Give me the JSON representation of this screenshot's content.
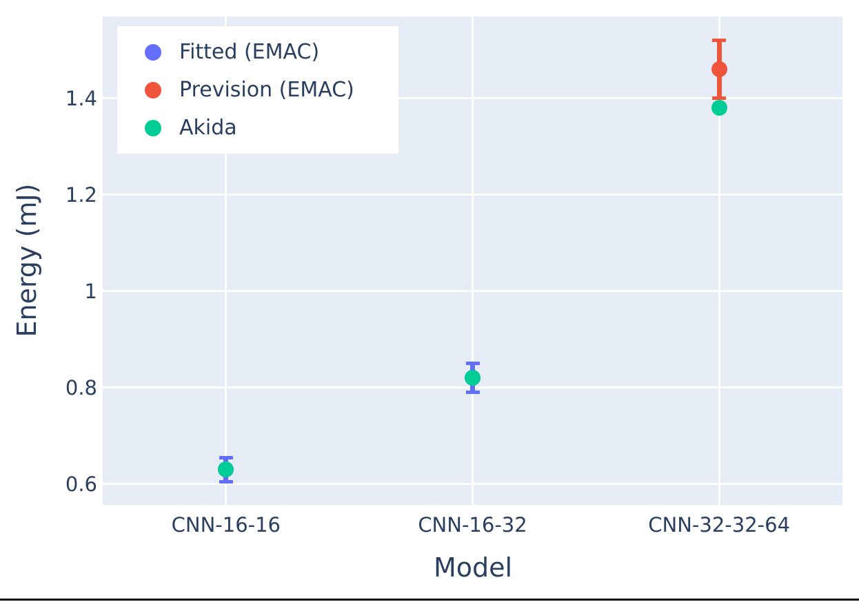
{
  "chart_data": {
    "type": "scatter",
    "title": "",
    "xlabel": "Model",
    "ylabel": "Energy (mJ)",
    "categories": [
      "CNN-16-16",
      "CNN-16-32",
      "CNN-32-32-64"
    ],
    "yticks": [
      0.6,
      0.8,
      1.0,
      1.2,
      1.4
    ],
    "ytick_labels": [
      "0.6",
      "0.8",
      "1",
      "1.2",
      "1.4"
    ],
    "ylim": [
      0.557,
      1.57
    ],
    "grid": true,
    "legend_position": "top-left",
    "plot_bg_color": "#e5ecf6",
    "grid_color": "#ffffff",
    "font_color": "#2a3f5f",
    "series": [
      {
        "name": "Fitted (EMAC)",
        "color": "#636efa",
        "marker": "circle",
        "points": [
          {
            "category": "CNN-16-16",
            "value": 0.63,
            "error": 0.025
          },
          {
            "category": "CNN-16-32",
            "value": 0.82,
            "error": 0.03
          }
        ]
      },
      {
        "name": "Prevision (EMAC)",
        "color": "#ef553b",
        "marker": "circle",
        "points": [
          {
            "category": "CNN-32-32-64",
            "value": 1.46,
            "error": 0.06
          }
        ]
      },
      {
        "name": "Akida",
        "color": "#00cc96",
        "marker": "circle",
        "points": [
          {
            "category": "CNN-16-16",
            "value": 0.63
          },
          {
            "category": "CNN-16-32",
            "value": 0.82
          },
          {
            "category": "CNN-32-32-64",
            "value": 1.38
          }
        ]
      }
    ]
  }
}
